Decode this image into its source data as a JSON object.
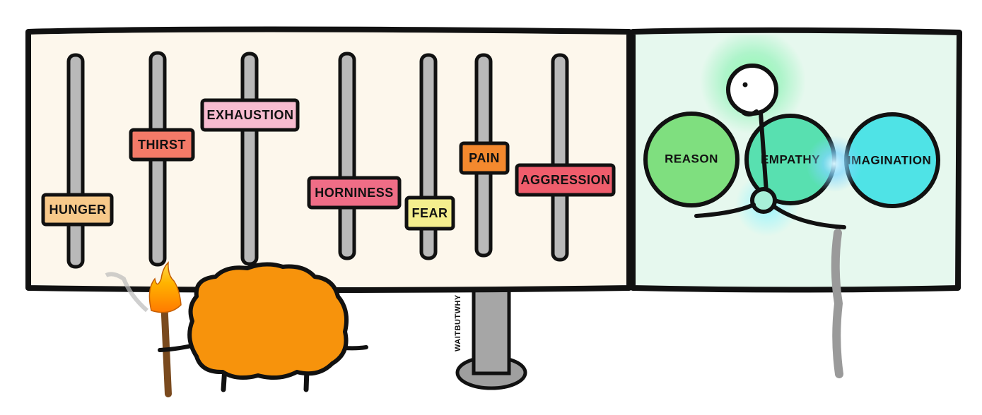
{
  "sliders": [
    {
      "label": "HUNGER",
      "color": "#f7c98a",
      "level": 0.3
    },
    {
      "label": "THIRST",
      "color": "#f47a68",
      "level": 0.55
    },
    {
      "label": "EXHAUSTION",
      "color": "#f8bcd0",
      "level": 0.78
    },
    {
      "label": "HORNINESS",
      "color": "#ef6d86",
      "level": 0.37
    },
    {
      "label": "FEAR",
      "color": "#f4ee8e",
      "level": 0.22
    },
    {
      "label": "PAIN",
      "color": "#f4892e",
      "level": 0.47
    },
    {
      "label": "AGGRESSION",
      "color": "#ef5d6c",
      "level": 0.43
    }
  ],
  "circles": [
    {
      "label": "REASON",
      "color": "#7fdf7f"
    },
    {
      "label": "EMPATHY",
      "color": "#58e0b0"
    },
    {
      "label": "IMAGINATION",
      "color": "#4fe3e6"
    }
  ],
  "signature": "WAITBUTWHY",
  "colors": {
    "left_panel": "#fdf7ec",
    "right_panel": "#e6f8ee",
    "monster": "#f7930c",
    "slider_track": "#b9b9b9",
    "outline": "#111111"
  }
}
